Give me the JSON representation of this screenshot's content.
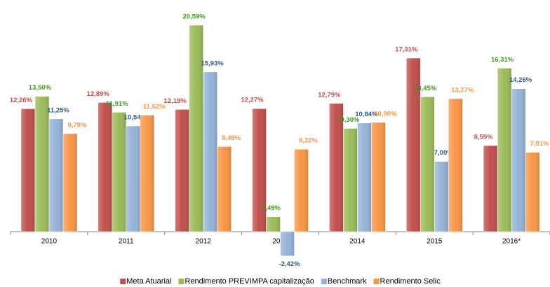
{
  "chart_data": {
    "type": "bar",
    "categories": [
      "2010",
      "2011",
      "2012",
      "2013",
      "2014",
      "2015",
      "2016*"
    ],
    "series": [
      {
        "name": "Meta Atuarial",
        "color": "#c0504d",
        "label_color": "#c0504d",
        "values": [
          12.26,
          12.89,
          12.19,
          12.27,
          12.79,
          17.31,
          8.59
        ],
        "value_labels": [
          "12,26%",
          "12,89%",
          "12,19%",
          "12,27%",
          "12,79%",
          "17,31%",
          "8,59%"
        ]
      },
      {
        "name": "Rendimento PREVIMPA capitalização",
        "color": "#9bbb59",
        "label_color": "#3f9a1c",
        "values": [
          13.5,
          11.91,
          20.59,
          1.49,
          10.3,
          13.45,
          16.31
        ],
        "value_labels": [
          "13,50%",
          "11,91%",
          "20,59%",
          "1,49%",
          "10,30%",
          "13,45%",
          "16,31%"
        ]
      },
      {
        "name": "Benchmark",
        "color": "#95b3d7",
        "label_color": "#2e5c8a",
        "values": [
          11.25,
          10.54,
          15.93,
          -2.42,
          10.84,
          7.0,
          14.26
        ],
        "value_labels": [
          "11,25%",
          "10,54%",
          "15,93%",
          "-2,42%",
          "10,84%",
          "7,00%",
          "14,26%"
        ]
      },
      {
        "name": "Rendimento Selic",
        "color": "#f79646",
        "label_color": "#f79646",
        "values": [
          9.78,
          11.62,
          8.49,
          8.22,
          10.9,
          13.27,
          7.91
        ],
        "value_labels": [
          "9,78%",
          "11,62%",
          "8,49%",
          "8,22%",
          "10,90%",
          "13,27%",
          "7,91%"
        ]
      }
    ],
    "legend": "bottom"
  }
}
